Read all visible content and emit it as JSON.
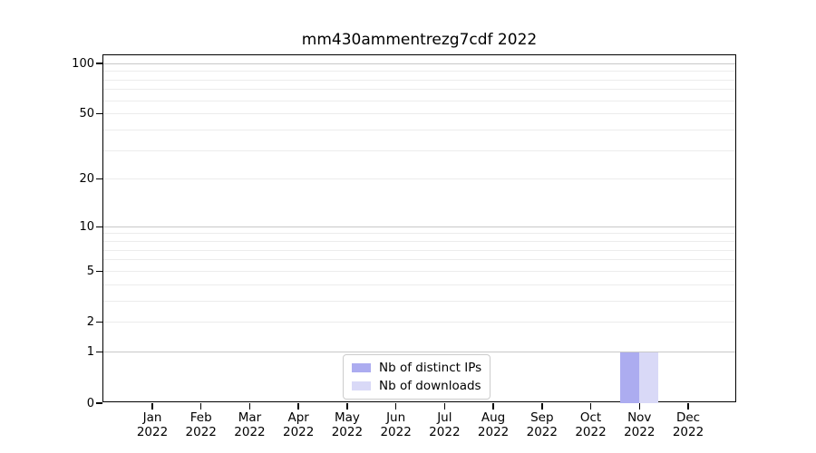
{
  "title": "mm430ammentrezg7cdf 2022",
  "colors": {
    "background": "#ffffff",
    "axis": "#000000",
    "major_gridline": "#c8c8c8",
    "minor_gridline": "#ececec",
    "distinct_ips_bar": "#acacf0",
    "downloads_bar": "#d9d9f7",
    "legend_border": "#cccccc",
    "text": "#000000"
  },
  "chart_data": {
    "type": "bar",
    "title": "mm430ammentrezg7cdf 2022",
    "xlabel": "",
    "ylabel": "",
    "categories": [
      "Jan 2022",
      "Feb 2022",
      "Mar 2022",
      "Apr 2022",
      "May 2022",
      "Jun 2022",
      "Jul 2022",
      "Aug 2022",
      "Sep 2022",
      "Oct 2022",
      "Nov 2022",
      "Dec 2022"
    ],
    "series": [
      {
        "name": "Nb of distinct IPs",
        "color": "#acacf0",
        "values": [
          0,
          0,
          0,
          0,
          0,
          0,
          0,
          0,
          0,
          0,
          1,
          0
        ]
      },
      {
        "name": "Nb of downloads",
        "color": "#d9d9f7",
        "values": [
          0,
          0,
          0,
          0,
          0,
          0,
          0,
          0,
          0,
          0,
          1,
          0
        ]
      }
    ],
    "yscale": "log1p",
    "ylim": [
      0,
      112
    ],
    "yticks": [
      0,
      1,
      2,
      5,
      10,
      20,
      50,
      100
    ],
    "minor_gridline_values": [
      2,
      3,
      4,
      5,
      6,
      7,
      8,
      9,
      20,
      30,
      40,
      50,
      60,
      70,
      80,
      90
    ],
    "major_gridline_values": [
      1,
      10,
      100
    ],
    "grid": "horizontal",
    "legend_position": "lower center"
  }
}
